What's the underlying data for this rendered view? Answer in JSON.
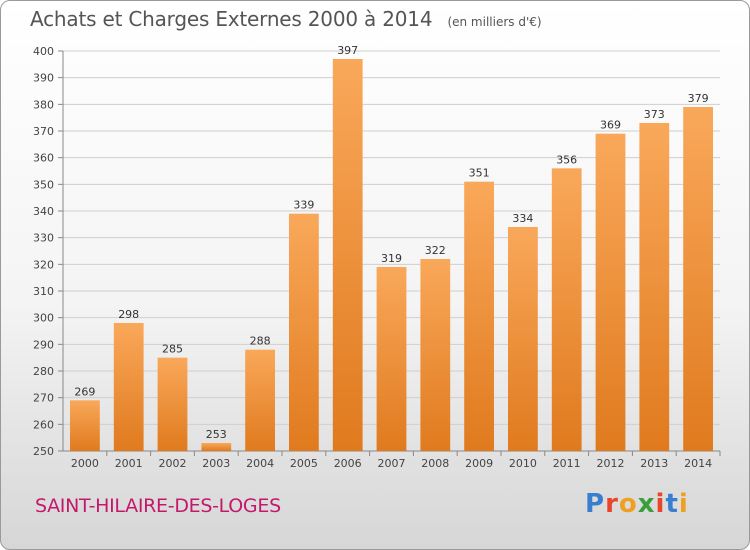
{
  "header": {
    "title": "Achats et Charges Externes 2000 à 2014",
    "unit": "(en milliers d'€)"
  },
  "footer": {
    "city": "SAINT-HILAIRE-DES-LOGES",
    "logo": "Proxiti"
  },
  "colors": {
    "bar_light": "#f9a85a",
    "bar_dark": "#e07a1e",
    "city": "#c4186c",
    "logo_letters": [
      "#3a7fcf",
      "#e8462a",
      "#f0a020",
      "#3a9f3a",
      "#e8462a",
      "#3a7fcf",
      "#f0a020"
    ]
  },
  "chart_data": {
    "type": "bar",
    "title": "Achats et Charges Externes 2000 à 2014",
    "subtitle": "(en milliers d'€)",
    "categories": [
      "2000",
      "2001",
      "2002",
      "2003",
      "2004",
      "2005",
      "2006",
      "2007",
      "2008",
      "2009",
      "2010",
      "2011",
      "2012",
      "2013",
      "2014"
    ],
    "values": [
      269,
      298,
      285,
      253,
      288,
      339,
      397,
      319,
      322,
      351,
      334,
      356,
      369,
      373,
      379
    ],
    "ylim": [
      250,
      400
    ],
    "yticks": [
      250,
      260,
      270,
      280,
      290,
      300,
      310,
      320,
      330,
      340,
      350,
      360,
      370,
      380,
      390,
      400
    ],
    "grid": true,
    "xlabel": "",
    "ylabel": ""
  }
}
